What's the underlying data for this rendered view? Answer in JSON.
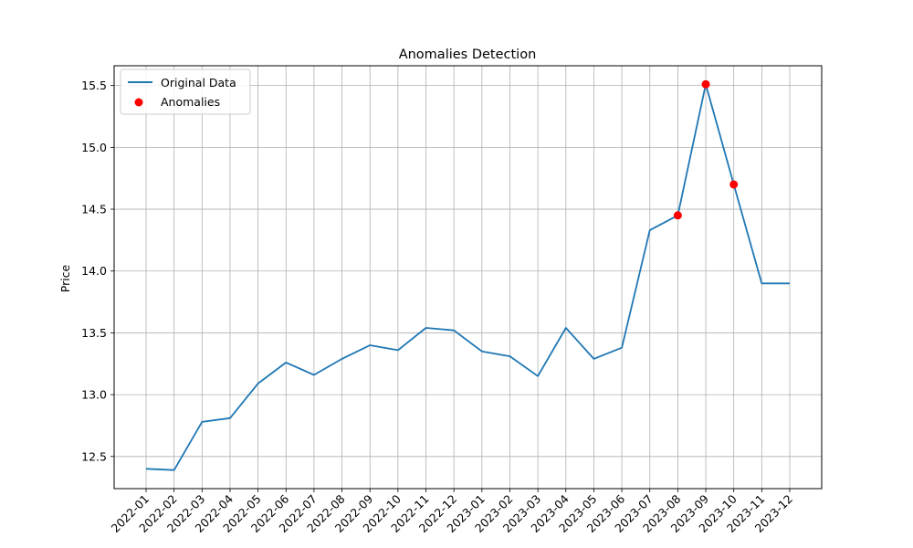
{
  "chart_data": {
    "type": "line",
    "title": "Anomalies Detection",
    "xlabel": "",
    "ylabel": "Price",
    "x": [
      "2022-01",
      "2022-02",
      "2022-03",
      "2022-04",
      "2022-05",
      "2022-06",
      "2022-07",
      "2022-08",
      "2022-09",
      "2022-10",
      "2022-11",
      "2022-12",
      "2023-01",
      "2023-02",
      "2023-03",
      "2023-04",
      "2023-05",
      "2023-06",
      "2023-07",
      "2023-08",
      "2023-09",
      "2023-10",
      "2023-11",
      "2023-12"
    ],
    "series": [
      {
        "name": "Original Data",
        "color": "#1f77b4",
        "values": [
          12.4,
          12.39,
          12.78,
          12.81,
          13.09,
          13.26,
          13.16,
          13.29,
          13.4,
          13.36,
          13.54,
          13.52,
          13.35,
          13.31,
          13.15,
          13.54,
          13.29,
          13.38,
          14.33,
          14.45,
          15.51,
          14.7,
          13.9,
          13.9
        ]
      }
    ],
    "anomalies": {
      "name": "Anomalies",
      "color": "#ff0000",
      "x": [
        "2023-08",
        "2023-09",
        "2023-10"
      ],
      "values": [
        14.45,
        15.51,
        14.7
      ]
    },
    "yticks": [
      12.5,
      13.0,
      13.5,
      14.0,
      14.5,
      15.0,
      15.5
    ],
    "ytick_labels": [
      "12.5",
      "13.0",
      "13.5",
      "14.0",
      "14.5",
      "15.0",
      "15.5"
    ],
    "ylim": [
      12.24,
      15.66
    ],
    "grid": true,
    "legend_position": "upper-left"
  }
}
